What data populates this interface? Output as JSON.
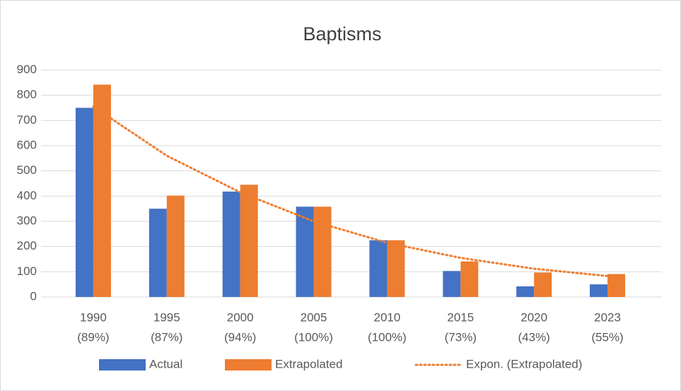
{
  "chart_data": {
    "type": "bar",
    "title": "Baptisms",
    "categories": [
      [
        "1990",
        "(89%)"
      ],
      [
        "1995",
        "(87%)"
      ],
      [
        "2000",
        "(94%)"
      ],
      [
        "2005",
        "(100%)"
      ],
      [
        "2010",
        "(100%)"
      ],
      [
        "2015",
        "(73%)"
      ],
      [
        "2020",
        "(43%)"
      ],
      [
        "2023",
        "(55%)"
      ]
    ],
    "series": [
      {
        "name": "Actual",
        "color": "#4472c4",
        "values": [
          750,
          350,
          418,
          358,
          225,
          103,
          42,
          50
        ]
      },
      {
        "name": "Extrapolated",
        "color": "#ed7d31",
        "values": [
          842,
          402,
          445,
          358,
          225,
          141,
          97,
          91
        ]
      },
      {
        "name": "Expon. (Extrapolated)",
        "color": "#ed7d31",
        "line_style": "dotted",
        "values": [
          755,
          560,
          415,
          300,
          215,
          155,
          112,
          83
        ]
      }
    ],
    "ylim": [
      0,
      900
    ],
    "yticks": [
      0,
      100,
      200,
      300,
      400,
      500,
      600,
      700,
      800,
      900
    ],
    "grid": true,
    "legend": "bottom"
  }
}
